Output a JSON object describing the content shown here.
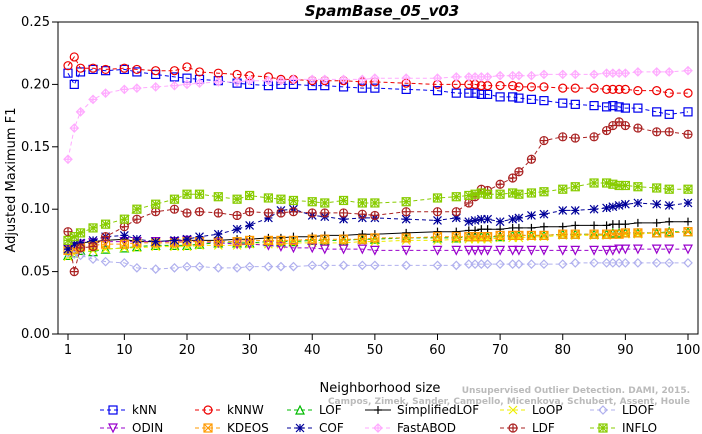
{
  "chart_data": {
    "type": "line",
    "title": "SpamBase_05_v03",
    "xlabel": "Neighborhood size",
    "ylabel": "Adjusted Maximum F1",
    "xlim": [
      1,
      100
    ],
    "ylim": [
      0,
      0.25
    ],
    "x_ticks": [
      1,
      10,
      20,
      30,
      40,
      50,
      60,
      70,
      80,
      90,
      100
    ],
    "y_ticks": [
      0.0,
      0.05,
      0.1,
      0.15,
      0.2,
      0.25
    ],
    "y_tick_labels": [
      "0.00",
      "0.05",
      "0.10",
      "0.15",
      "0.20",
      "0.25"
    ],
    "x": [
      1,
      2,
      3,
      5,
      7,
      10,
      12,
      15,
      18,
      20,
      22,
      25,
      28,
      30,
      33,
      35,
      37,
      40,
      42,
      45,
      48,
      50,
      55,
      60,
      63,
      65,
      66,
      67,
      68,
      70,
      72,
      73,
      75,
      77,
      80,
      82,
      85,
      87,
      88,
      89,
      90,
      92,
      95,
      97,
      100
    ],
    "series": [
      {
        "name": "kNN",
        "color": "#0000ee",
        "marker": "square",
        "dashed": true,
        "values": [
          0.209,
          0.2,
          0.21,
          0.212,
          0.211,
          0.212,
          0.21,
          0.208,
          0.206,
          0.205,
          0.204,
          0.203,
          0.201,
          0.2,
          0.199,
          0.2,
          0.2,
          0.199,
          0.199,
          0.198,
          0.197,
          0.197,
          0.196,
          0.195,
          0.193,
          0.193,
          0.193,
          0.192,
          0.192,
          0.19,
          0.19,
          0.189,
          0.188,
          0.187,
          0.185,
          0.184,
          0.183,
          0.182,
          0.183,
          0.182,
          0.181,
          0.181,
          0.178,
          0.176,
          0.178
        ]
      },
      {
        "name": "kNNW",
        "color": "#ee0000",
        "marker": "circle",
        "dashed": true,
        "values": [
          0.215,
          0.222,
          0.213,
          0.213,
          0.212,
          0.213,
          0.212,
          0.211,
          0.211,
          0.214,
          0.21,
          0.209,
          0.208,
          0.207,
          0.206,
          0.204,
          0.204,
          0.203,
          0.203,
          0.203,
          0.202,
          0.202,
          0.201,
          0.2,
          0.2,
          0.2,
          0.2,
          0.199,
          0.199,
          0.199,
          0.199,
          0.198,
          0.198,
          0.198,
          0.197,
          0.197,
          0.197,
          0.196,
          0.196,
          0.196,
          0.196,
          0.195,
          0.195,
          0.193,
          0.193
        ]
      },
      {
        "name": "LOF",
        "color": "#00bb00",
        "marker": "triangle",
        "dashed": true,
        "values": [
          0.063,
          0.065,
          0.067,
          0.066,
          0.068,
          0.069,
          0.07,
          0.071,
          0.071,
          0.071,
          0.072,
          0.073,
          0.073,
          0.073,
          0.074,
          0.074,
          0.074,
          0.075,
          0.075,
          0.075,
          0.076,
          0.076,
          0.077,
          0.077,
          0.077,
          0.078,
          0.078,
          0.078,
          0.078,
          0.078,
          0.079,
          0.079,
          0.079,
          0.079,
          0.08,
          0.08,
          0.08,
          0.08,
          0.081,
          0.081,
          0.081,
          0.081,
          0.081,
          0.082,
          0.082
        ]
      },
      {
        "name": "SimplifiedLOF",
        "color": "#000000",
        "marker": "plus",
        "dashed": false,
        "values": [
          0.07,
          0.071,
          0.073,
          0.074,
          0.075,
          0.076,
          0.074,
          0.074,
          0.075,
          0.075,
          0.075,
          0.075,
          0.076,
          0.076,
          0.077,
          0.077,
          0.078,
          0.078,
          0.079,
          0.079,
          0.08,
          0.08,
          0.081,
          0.082,
          0.082,
          0.083,
          0.083,
          0.084,
          0.084,
          0.084,
          0.085,
          0.085,
          0.085,
          0.086,
          0.086,
          0.087,
          0.087,
          0.087,
          0.088,
          0.088,
          0.088,
          0.089,
          0.089,
          0.09,
          0.09
        ]
      },
      {
        "name": "LoOP",
        "color": "#eeee00",
        "marker": "x",
        "dashed": true,
        "values": [
          0.062,
          0.064,
          0.066,
          0.067,
          0.068,
          0.069,
          0.069,
          0.07,
          0.07,
          0.07,
          0.071,
          0.071,
          0.071,
          0.072,
          0.072,
          0.072,
          0.073,
          0.073,
          0.073,
          0.073,
          0.074,
          0.074,
          0.075,
          0.075,
          0.076,
          0.076,
          0.076,
          0.076,
          0.076,
          0.077,
          0.077,
          0.077,
          0.078,
          0.078,
          0.079,
          0.079,
          0.079,
          0.079,
          0.08,
          0.08,
          0.08,
          0.08,
          0.081,
          0.081,
          0.082
        ]
      },
      {
        "name": "LDOF",
        "color": "#b0b0ee",
        "marker": "diamond",
        "dashed": true,
        "values": [
          0.065,
          0.064,
          0.063,
          0.06,
          0.058,
          0.057,
          0.053,
          0.052,
          0.053,
          0.054,
          0.054,
          0.053,
          0.053,
          0.054,
          0.054,
          0.054,
          0.054,
          0.055,
          0.055,
          0.055,
          0.055,
          0.055,
          0.055,
          0.055,
          0.055,
          0.056,
          0.056,
          0.056,
          0.056,
          0.056,
          0.056,
          0.056,
          0.056,
          0.056,
          0.056,
          0.057,
          0.057,
          0.057,
          0.057,
          0.057,
          0.057,
          0.057,
          0.057,
          0.057,
          0.057
        ]
      },
      {
        "name": "ODIN",
        "color": "#9900cc",
        "marker": "triangle-down",
        "dashed": true,
        "values": [
          0.068,
          0.07,
          0.072,
          0.073,
          0.074,
          0.074,
          0.074,
          0.074,
          0.074,
          0.075,
          0.074,
          0.073,
          0.072,
          0.072,
          0.071,
          0.07,
          0.069,
          0.069,
          0.068,
          0.068,
          0.068,
          0.067,
          0.067,
          0.067,
          0.067,
          0.067,
          0.067,
          0.067,
          0.067,
          0.067,
          0.067,
          0.067,
          0.067,
          0.067,
          0.067,
          0.067,
          0.067,
          0.067,
          0.067,
          0.068,
          0.068,
          0.068,
          0.068,
          0.068,
          0.068
        ]
      },
      {
        "name": "KDEOS",
        "color": "#ff9900",
        "marker": "square-x",
        "dashed": true,
        "values": [
          0.067,
          0.068,
          0.07,
          0.071,
          0.072,
          0.072,
          0.073,
          0.073,
          0.073,
          0.074,
          0.074,
          0.074,
          0.074,
          0.075,
          0.075,
          0.075,
          0.075,
          0.076,
          0.076,
          0.076,
          0.076,
          0.077,
          0.077,
          0.078,
          0.078,
          0.078,
          0.078,
          0.078,
          0.078,
          0.079,
          0.079,
          0.079,
          0.079,
          0.079,
          0.08,
          0.08,
          0.08,
          0.08,
          0.08,
          0.08,
          0.081,
          0.081,
          0.081,
          0.081,
          0.082
        ]
      },
      {
        "name": "COF",
        "color": "#000099",
        "marker": "star",
        "dashed": true,
        "values": [
          0.068,
          0.072,
          0.073,
          0.075,
          0.078,
          0.079,
          0.076,
          0.074,
          0.075,
          0.076,
          0.078,
          0.08,
          0.084,
          0.087,
          0.093,
          0.099,
          0.1,
          0.095,
          0.094,
          0.092,
          0.093,
          0.093,
          0.092,
          0.091,
          0.093,
          0.09,
          0.091,
          0.092,
          0.092,
          0.09,
          0.092,
          0.093,
          0.095,
          0.096,
          0.099,
          0.099,
          0.1,
          0.101,
          0.102,
          0.103,
          0.104,
          0.105,
          0.104,
          0.103,
          0.105
        ]
      },
      {
        "name": "FastABOD",
        "color": "#ffaaff",
        "marker": "diamond-plus",
        "dashed": true,
        "values": [
          0.14,
          0.165,
          0.178,
          0.188,
          0.193,
          0.196,
          0.197,
          0.198,
          0.199,
          0.2,
          0.201,
          0.202,
          0.202,
          0.203,
          0.203,
          0.203,
          0.204,
          0.204,
          0.204,
          0.204,
          0.204,
          0.205,
          0.205,
          0.205,
          0.206,
          0.206,
          0.206,
          0.206,
          0.206,
          0.207,
          0.207,
          0.207,
          0.207,
          0.208,
          0.208,
          0.208,
          0.208,
          0.209,
          0.209,
          0.209,
          0.209,
          0.21,
          0.21,
          0.21,
          0.211
        ]
      },
      {
        "name": "LDF",
        "color": "#aa2222",
        "marker": "circle-plus",
        "dashed": true,
        "values": [
          0.082,
          0.05,
          0.069,
          0.07,
          0.078,
          0.086,
          0.092,
          0.098,
          0.1,
          0.097,
          0.098,
          0.097,
          0.095,
          0.098,
          0.097,
          0.097,
          0.098,
          0.097,
          0.097,
          0.097,
          0.096,
          0.095,
          0.098,
          0.098,
          0.098,
          0.105,
          0.11,
          0.116,
          0.115,
          0.12,
          0.125,
          0.13,
          0.14,
          0.155,
          0.158,
          0.157,
          0.158,
          0.163,
          0.167,
          0.17,
          0.167,
          0.165,
          0.162,
          0.162,
          0.16
        ]
      },
      {
        "name": "INFLO",
        "color": "#88cc00",
        "marker": "hash",
        "dashed": true,
        "values": [
          0.075,
          0.078,
          0.081,
          0.085,
          0.088,
          0.092,
          0.1,
          0.104,
          0.108,
          0.112,
          0.112,
          0.11,
          0.108,
          0.111,
          0.109,
          0.108,
          0.107,
          0.106,
          0.105,
          0.107,
          0.105,
          0.105,
          0.106,
          0.109,
          0.11,
          0.111,
          0.112,
          0.113,
          0.112,
          0.112,
          0.113,
          0.112,
          0.113,
          0.114,
          0.116,
          0.118,
          0.121,
          0.121,
          0.12,
          0.119,
          0.119,
          0.118,
          0.117,
          0.116,
          0.116
        ]
      }
    ],
    "legend_placement": "bottom",
    "legend_order": [
      "kNN",
      "kNNW",
      "LOF",
      "SimplifiedLOF",
      "LoOP",
      "LDOF",
      "ODIN",
      "KDEOS",
      "COF",
      "FastABOD",
      "LDF",
      "INFLO"
    ],
    "grid": false
  },
  "watermark": {
    "line1": "Unsupervised Outlier Detection. DAMI, 2015.",
    "line2": "Campos, Zimek, Sander, Campello, Micenkova, Schubert, Assent, Houle"
  }
}
